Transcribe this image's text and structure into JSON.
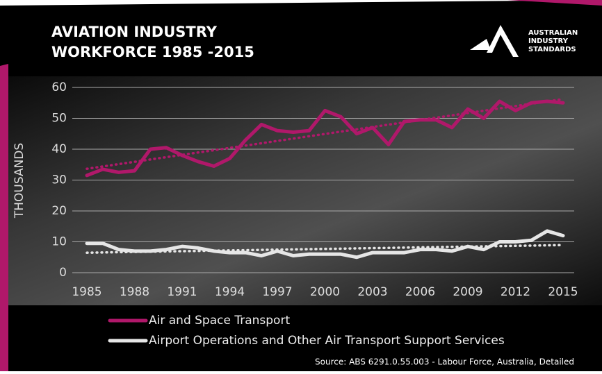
{
  "chart_data": {
    "type": "line",
    "title": [
      "AVIATION INDUSTRY",
      "WORKFORCE 1985 -2015"
    ],
    "y_label": "THOUSANDS",
    "source": "Source: ABS 6291.0.55.003  - Labour Force, Australia, Detailed",
    "x": [
      1985,
      1986,
      1987,
      1988,
      1989,
      1990,
      1991,
      1992,
      1993,
      1994,
      1995,
      1996,
      1997,
      1998,
      1999,
      2000,
      2001,
      2002,
      2003,
      2004,
      2005,
      2006,
      2007,
      2008,
      2009,
      2010,
      2011,
      2012,
      2013,
      2014,
      2015
    ],
    "xlim": [
      1985,
      2015
    ],
    "xticks": [
      1985,
      1988,
      1991,
      1994,
      1997,
      2000,
      2003,
      2006,
      2009,
      2012,
      2015
    ],
    "ylim": [
      0,
      60
    ],
    "yticks": [
      0,
      10,
      20,
      30,
      40,
      50,
      60
    ],
    "grid": true,
    "trendline": true,
    "series": [
      {
        "name": "Air and Space Transport",
        "color": "#b0186a",
        "values": [
          31.5,
          33.5,
          32.5,
          33,
          40,
          40.5,
          38,
          36,
          34.5,
          37,
          43,
          48,
          46,
          45.5,
          46,
          52.5,
          50.5,
          45,
          47,
          41.5,
          49,
          49.5,
          49.5,
          47,
          53,
          50,
          55.5,
          52.5,
          55,
          55.5,
          55
        ]
      },
      {
        "name": "Airport Operations and Other Air Transport Support Services",
        "color": "#e6e6e6",
        "values": [
          9.5,
          9.5,
          7.5,
          7,
          7,
          7.5,
          8.5,
          8,
          7,
          6.5,
          6.5,
          5.5,
          7,
          5.5,
          6,
          6,
          6,
          5,
          6.5,
          6.5,
          6.5,
          7.5,
          7.5,
          7,
          8.5,
          7.5,
          10,
          10,
          10.5,
          13.5,
          12
        ]
      }
    ]
  },
  "logo": [
    "AUSTRALIAN",
    "INDUSTRY",
    "STANDARDS"
  ]
}
